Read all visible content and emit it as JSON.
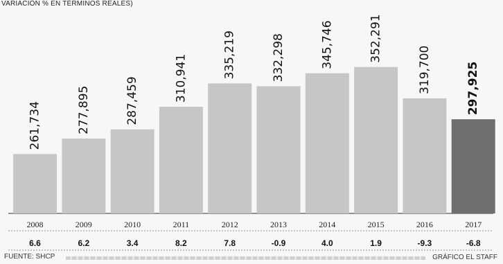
{
  "subtitle": "VARIACIÓN % EN TÉRMINOS REALES)",
  "source": "FUENTE: SHCP",
  "credit": "GRÁFICO EL STAFF",
  "colors": {
    "bar": "#c6c6c6",
    "highlight": "#6f6f6f",
    "label": "#111111"
  },
  "chart_data": {
    "type": "bar",
    "categories": [
      "2008",
      "2009",
      "2010",
      "2011",
      "2012",
      "2013",
      "2014",
      "2015",
      "2016",
      "2017"
    ],
    "values": [
      261734,
      277895,
      287459,
      310941,
      335219,
      332298,
      345746,
      352291,
      319700,
      297925
    ],
    "value_labels": [
      "261,734",
      "277,895",
      "287,459",
      "310,941",
      "335,219",
      "332,298",
      "345,746",
      "352,291",
      "319,700",
      "297,925"
    ],
    "variation": [
      "6.6",
      "6.2",
      "3.4",
      "8.2",
      "7.8",
      "-0.9",
      "4.0",
      "1.9",
      "-9.3",
      "-6.8"
    ],
    "highlight_index": 9,
    "ylim": [
      200000,
      360000
    ]
  }
}
